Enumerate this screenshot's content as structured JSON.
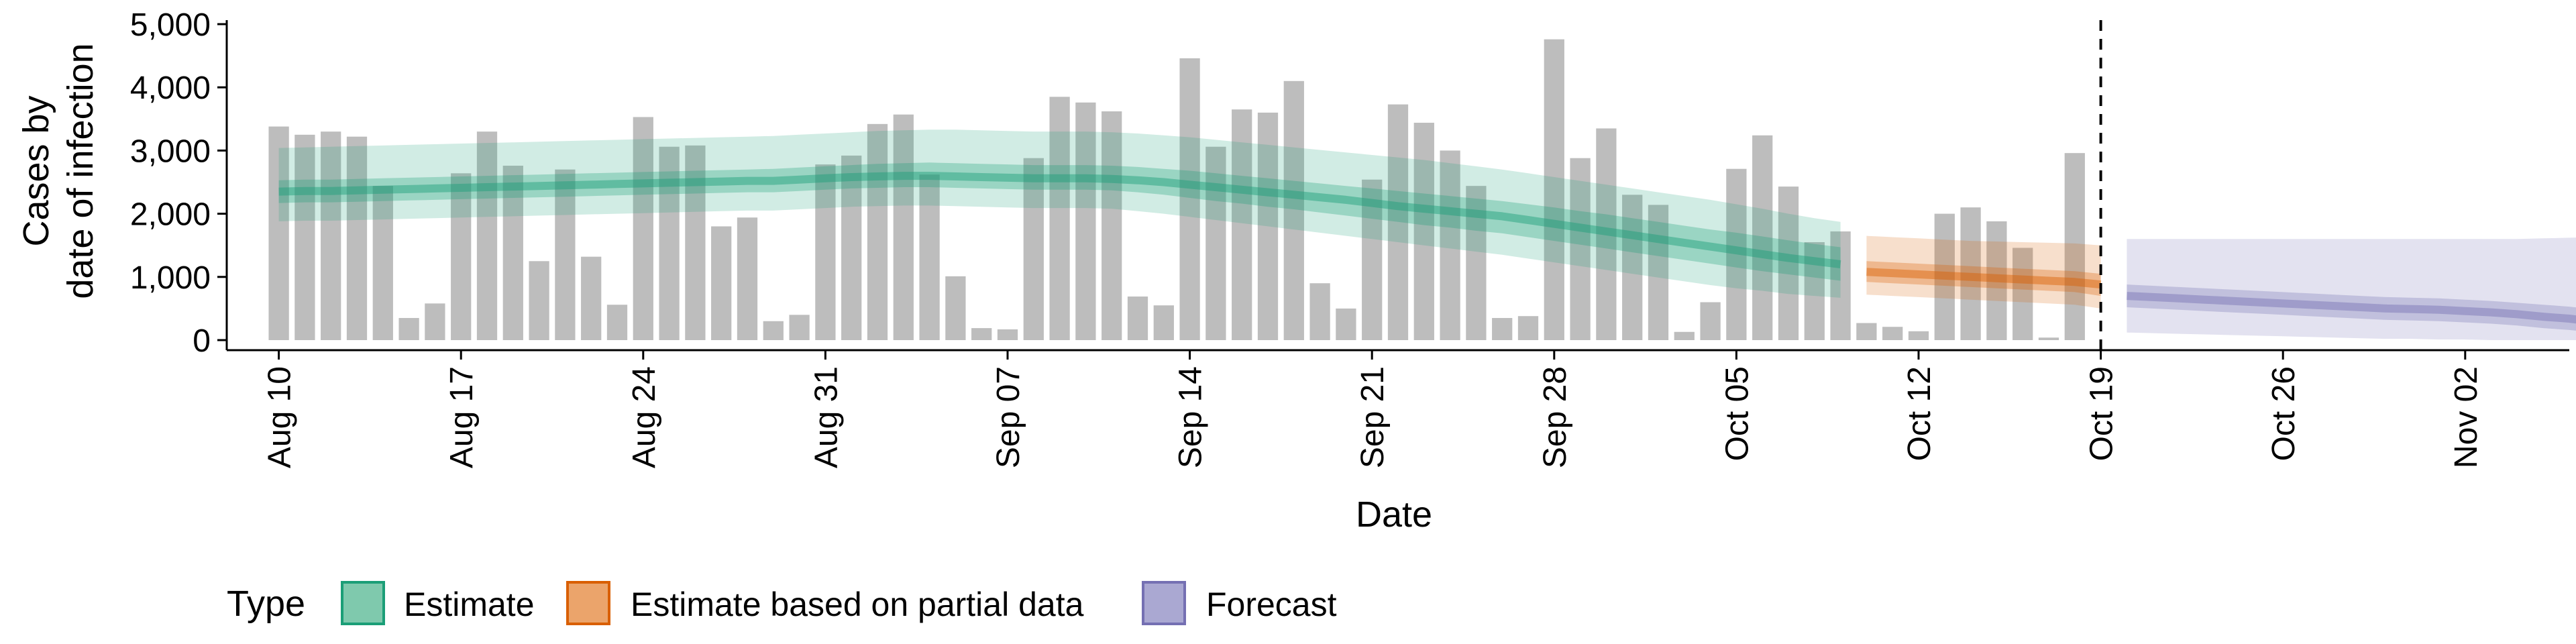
{
  "chart_data": {
    "type": "bar",
    "xlabel": "Date",
    "ylabel_line1": "Cases by",
    "ylabel_line2": "date of infection",
    "ylim": [
      0,
      5000
    ],
    "y_ticks": [
      0,
      1000,
      2000,
      3000,
      4000,
      5000
    ],
    "y_tick_labels": [
      "0",
      "1,000",
      "2,000",
      "3,000",
      "4,000",
      "5,000"
    ],
    "x_ticks": [
      {
        "date": "2020-08-10",
        "label": "Aug 10"
      },
      {
        "date": "2020-08-17",
        "label": "Aug 17"
      },
      {
        "date": "2020-08-24",
        "label": "Aug 24"
      },
      {
        "date": "2020-08-31",
        "label": "Aug 31"
      },
      {
        "date": "2020-09-07",
        "label": "Sep 07"
      },
      {
        "date": "2020-09-14",
        "label": "Sep 14"
      },
      {
        "date": "2020-09-21",
        "label": "Sep 21"
      },
      {
        "date": "2020-09-28",
        "label": "Sep 28"
      },
      {
        "date": "2020-10-05",
        "label": "Oct 05"
      },
      {
        "date": "2020-10-12",
        "label": "Oct 12"
      },
      {
        "date": "2020-10-19",
        "label": "Oct 19"
      },
      {
        "date": "2020-10-26",
        "label": "Oct 26"
      },
      {
        "date": "2020-11-02",
        "label": "Nov 02"
      }
    ],
    "x_range": [
      "2020-08-08",
      "2020-11-06"
    ],
    "vline_date": "2020-10-19",
    "grid": false,
    "legend": {
      "position": "bottom",
      "title": "Type",
      "items": [
        {
          "label": "Estimate",
          "fill": "#7fc9ad",
          "stroke": "#1b9e77"
        },
        {
          "label": "Estimate based on partial data",
          "fill": "#eba46b",
          "stroke": "#d95f02"
        },
        {
          "label": "Forecast",
          "fill": "#aaa8d2",
          "stroke": "#7570b3"
        }
      ]
    },
    "colors": {
      "bars": "#bdbdbd",
      "estimate": "#1b9e77",
      "partial": "#d95f02",
      "forecast": "#7570b3",
      "vline": "#000000"
    },
    "reported_cases": {
      "start_date": "2020-08-10",
      "values": [
        3380,
        3250,
        3300,
        3220,
        2440,
        350,
        580,
        2640,
        3300,
        2760,
        1250,
        2700,
        1320,
        560,
        3530,
        3060,
        3080,
        1800,
        1940,
        300,
        400,
        2780,
        2920,
        3420,
        3570,
        2620,
        1010,
        190,
        170,
        2880,
        3850,
        3760,
        3620,
        690,
        550,
        4460,
        3060,
        3650,
        3600,
        4100,
        900,
        500,
        2540,
        3730,
        3440,
        3000,
        2440,
        350,
        380,
        4760,
        2880,
        3350,
        2300,
        2140,
        130,
        600,
        2710,
        3240,
        2430,
        1550,
        1720,
        270,
        210,
        140,
        2000,
        2100,
        1880,
        1460,
        40,
        2960
      ]
    },
    "series": [
      {
        "name": "Estimate",
        "start_date": "2020-08-10",
        "median": [
          2350,
          2360,
          2360,
          2370,
          2380,
          2390,
          2400,
          2410,
          2420,
          2430,
          2440,
          2450,
          2460,
          2470,
          2480,
          2490,
          2500,
          2510,
          2520,
          2520,
          2540,
          2560,
          2580,
          2590,
          2600,
          2600,
          2590,
          2580,
          2570,
          2560,
          2560,
          2560,
          2550,
          2530,
          2500,
          2460,
          2420,
          2380,
          2340,
          2300,
          2260,
          2220,
          2170,
          2120,
          2080,
          2040,
          2000,
          1960,
          1900,
          1840,
          1780,
          1720,
          1660,
          1600,
          1540,
          1480,
          1420,
          1360,
          1300,
          1250,
          1200
        ],
        "lower50": [
          2170,
          2180,
          2180,
          2190,
          2200,
          2210,
          2220,
          2230,
          2240,
          2250,
          2260,
          2270,
          2280,
          2290,
          2300,
          2310,
          2320,
          2330,
          2340,
          2340,
          2360,
          2380,
          2400,
          2410,
          2420,
          2420,
          2410,
          2400,
          2390,
          2380,
          2380,
          2380,
          2370,
          2340,
          2300,
          2250,
          2200,
          2160,
          2110,
          2070,
          2020,
          1970,
          1920,
          1870,
          1820,
          1780,
          1730,
          1690,
          1630,
          1570,
          1510,
          1450,
          1390,
          1330,
          1270,
          1210,
          1150,
          1090,
          1040,
          990,
          940
        ],
        "upper50": [
          2530,
          2540,
          2540,
          2550,
          2560,
          2570,
          2580,
          2590,
          2600,
          2610,
          2620,
          2630,
          2640,
          2650,
          2660,
          2670,
          2680,
          2690,
          2700,
          2710,
          2730,
          2750,
          2770,
          2790,
          2800,
          2810,
          2800,
          2790,
          2780,
          2770,
          2770,
          2770,
          2760,
          2740,
          2710,
          2680,
          2640,
          2600,
          2560,
          2520,
          2480,
          2440,
          2400,
          2360,
          2320,
          2280,
          2240,
          2200,
          2150,
          2100,
          2040,
          1990,
          1930,
          1870,
          1810,
          1750,
          1700,
          1640,
          1580,
          1520,
          1470
        ],
        "lower90": [
          1880,
          1890,
          1890,
          1900,
          1910,
          1920,
          1930,
          1940,
          1950,
          1960,
          1970,
          1980,
          1990,
          2000,
          2010,
          2020,
          2030,
          2040,
          2050,
          2050,
          2070,
          2090,
          2110,
          2120,
          2130,
          2130,
          2120,
          2110,
          2100,
          2090,
          2090,
          2090,
          2080,
          2040,
          2000,
          1950,
          1900,
          1850,
          1800,
          1750,
          1700,
          1650,
          1600,
          1550,
          1500,
          1450,
          1400,
          1350,
          1290,
          1230,
          1170,
          1110,
          1050,
          990,
          930,
          870,
          820,
          780,
          730,
          700,
          670
        ],
        "upper90": [
          3040,
          3050,
          3060,
          3070,
          3080,
          3090,
          3100,
          3110,
          3120,
          3130,
          3140,
          3150,
          3160,
          3170,
          3180,
          3190,
          3200,
          3210,
          3220,
          3230,
          3250,
          3270,
          3290,
          3310,
          3320,
          3330,
          3330,
          3320,
          3310,
          3300,
          3300,
          3300,
          3290,
          3270,
          3240,
          3210,
          3170,
          3130,
          3090,
          3050,
          3010,
          2970,
          2930,
          2890,
          2850,
          2800,
          2750,
          2700,
          2640,
          2580,
          2520,
          2460,
          2400,
          2340,
          2280,
          2220,
          2150,
          2080,
          2000,
          1930,
          1870
        ]
      },
      {
        "name": "Estimate based on partial data",
        "start_date": "2020-10-10",
        "median": [
          1080,
          1060,
          1040,
          1020,
          1000,
          980,
          960,
          940,
          920,
          880
        ],
        "lower50": [
          920,
          900,
          880,
          860,
          840,
          820,
          800,
          780,
          760,
          700
        ],
        "upper50": [
          1250,
          1230,
          1210,
          1190,
          1170,
          1150,
          1130,
          1110,
          1090,
          1050
        ],
        "lower90": [
          720,
          700,
          680,
          660,
          640,
          620,
          600,
          580,
          560,
          500
        ],
        "upper90": [
          1650,
          1630,
          1610,
          1590,
          1570,
          1560,
          1550,
          1540,
          1530,
          1500
        ]
      },
      {
        "name": "Forecast",
        "start_date": "2020-10-20",
        "median": [
          700,
          680,
          660,
          640,
          620,
          600,
          580,
          560,
          540,
          520,
          500,
          490,
          480,
          460,
          440,
          410,
          370,
          340,
          290,
          250
        ],
        "lower50": [
          520,
          500,
          480,
          460,
          440,
          420,
          400,
          380,
          360,
          340,
          320,
          310,
          300,
          280,
          260,
          230,
          190,
          160,
          120,
          80
        ],
        "upper50": [
          880,
          860,
          840,
          820,
          800,
          780,
          760,
          740,
          720,
          700,
          680,
          670,
          660,
          640,
          620,
          590,
          560,
          530,
          480,
          430
        ],
        "lower90": [
          120,
          110,
          100,
          90,
          80,
          70,
          60,
          50,
          40,
          30,
          20,
          20,
          10,
          10,
          0,
          0,
          0,
          0,
          0,
          0
        ],
        "upper90": [
          1600,
          1600,
          1600,
          1600,
          1600,
          1600,
          1600,
          1600,
          1600,
          1600,
          1600,
          1600,
          1600,
          1600,
          1600,
          1600,
          1610,
          1620,
          1630,
          1640
        ]
      }
    ]
  }
}
